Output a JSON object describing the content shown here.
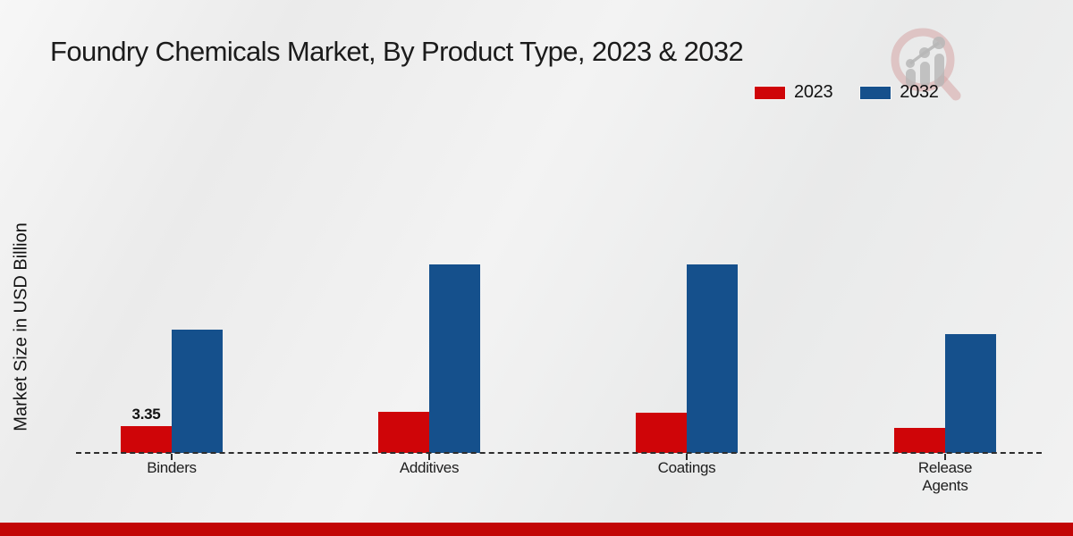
{
  "title": "Foundry Chemicals Market, By Product Type, 2023 & 2032",
  "y_axis_label": "Market Size in USD Billion",
  "logo_icon": "bar-chart-magnifier-logo",
  "colors": {
    "series_2023": "#cf0508",
    "series_2032": "#15508c",
    "footer_bar": "#c20606",
    "baseline": "#2d2d2d"
  },
  "chart_data": {
    "type": "bar",
    "title": "Foundry Chemicals Market, By Product Type, 2023 & 2032",
    "xlabel": "",
    "ylabel": "Market Size in USD Billion",
    "categories": [
      "Binders",
      "Additives",
      "Coatings",
      "Release Agents"
    ],
    "series": [
      {
        "name": "2023",
        "color": "#cf0508",
        "values": [
          3.35,
          5.1,
          5.0,
          3.1
        ],
        "point_labels": [
          "3.35",
          "",
          "",
          ""
        ]
      },
      {
        "name": "2032",
        "color": "#15508c",
        "values": [
          15.3,
          23.4,
          23.4,
          14.8
        ],
        "point_labels": [
          "",
          "",
          "",
          ""
        ]
      }
    ],
    "ylim": [
      0,
      26
    ],
    "grid": false,
    "axis_style": "dashed-baseline-only",
    "legend_position": "top-right"
  }
}
